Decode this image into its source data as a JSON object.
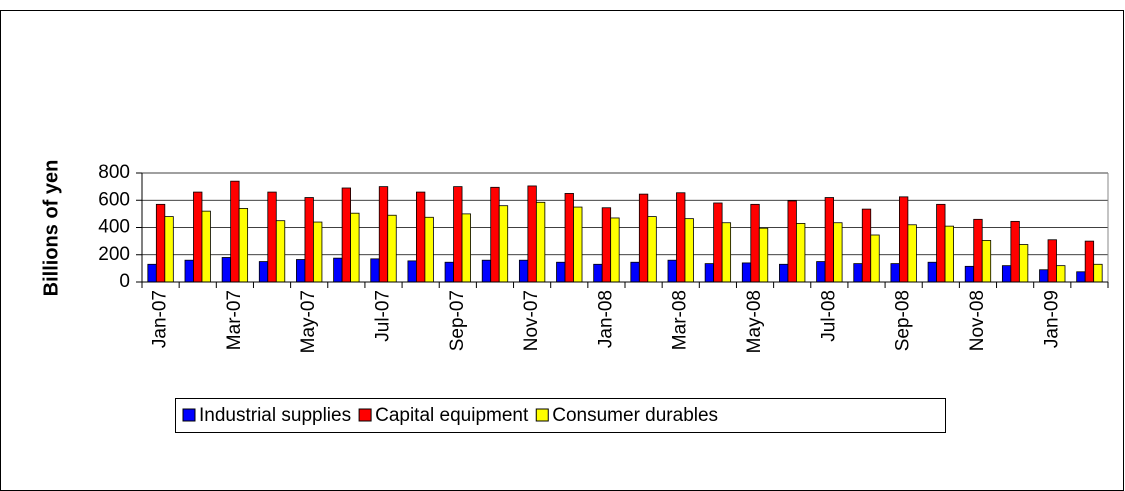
{
  "chart_data": {
    "type": "bar",
    "y_label": "Billions of yen",
    "categories": [
      "Jan-07",
      null,
      "Mar-07",
      null,
      "May-07",
      null,
      "Jul-07",
      null,
      "Sep-07",
      null,
      "Nov-07",
      null,
      "Jan-08",
      null,
      "Mar-08",
      null,
      "May-08",
      null,
      "Jul-08",
      null,
      "Sep-08",
      null,
      "Nov-08",
      null,
      "Jan-09",
      null
    ],
    "series": [
      {
        "name": "Industrial supplies",
        "color": "#0000ff",
        "values": [
          130,
          160,
          180,
          150,
          165,
          175,
          170,
          155,
          145,
          160,
          160,
          145,
          130,
          145,
          160,
          135,
          140,
          130,
          150,
          135,
          135,
          145,
          115,
          120,
          90,
          75
        ]
      },
      {
        "name": "Capital equipment",
        "color": "#ff0000",
        "values": [
          570,
          660,
          740,
          660,
          620,
          690,
          700,
          660,
          700,
          695,
          705,
          650,
          545,
          645,
          655,
          580,
          570,
          595,
          620,
          535,
          625,
          570,
          460,
          445,
          310,
          300
        ]
      },
      {
        "name": "Consumer durables",
        "color": "#ffff00",
        "values": [
          480,
          520,
          540,
          450,
          440,
          505,
          490,
          475,
          500,
          560,
          585,
          550,
          470,
          480,
          465,
          435,
          395,
          430,
          435,
          345,
          420,
          410,
          305,
          275,
          120,
          130
        ]
      }
    ],
    "ylim": [
      0,
      800
    ],
    "yticks": [
      0,
      200,
      400,
      600,
      800
    ],
    "grid": true,
    "legend": "bottom"
  }
}
